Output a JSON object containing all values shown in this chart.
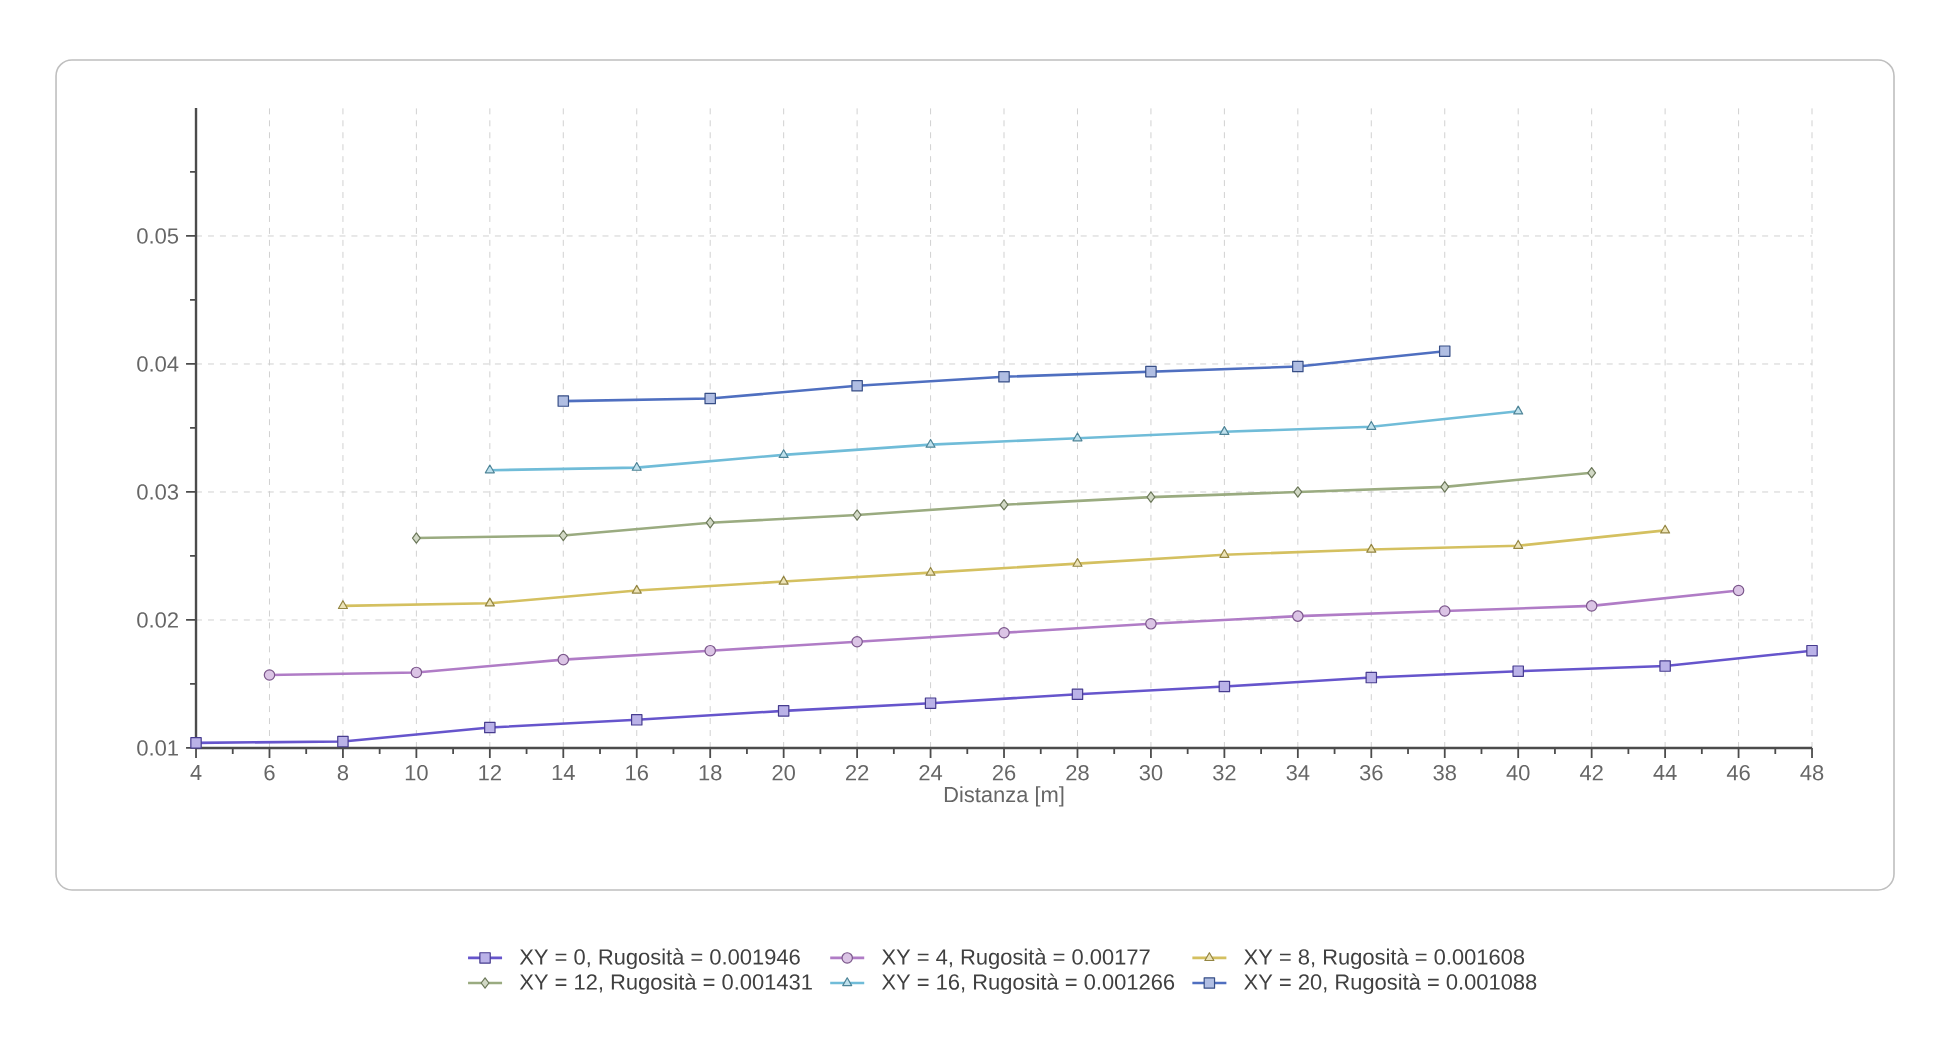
{
  "chart_data": {
    "type": "line",
    "xlabel": "Distanza [m]",
    "grid": true,
    "legend": "bottom",
    "xlim": [
      4,
      48
    ],
    "ylim": [
      0.01,
      0.06
    ],
    "xticks": [
      4,
      {
        "value": 5,
        "label": null
      },
      6,
      {
        "value": 7,
        "label": null
      },
      8,
      {
        "value": 9,
        "label": null
      },
      10,
      {
        "value": 11,
        "label": null
      },
      12,
      {
        "value": 13,
        "label": null
      },
      14,
      {
        "value": 15,
        "label": null
      },
      16,
      {
        "value": 17,
        "label": null
      },
      18,
      {
        "value": 19,
        "label": null
      },
      20,
      {
        "value": 21,
        "label": null
      },
      22,
      {
        "value": 23,
        "label": null
      },
      24,
      {
        "value": 25,
        "label": null
      },
      26,
      {
        "value": 27,
        "label": null
      },
      28,
      {
        "value": 29,
        "label": null
      },
      30,
      {
        "value": 31,
        "label": null
      },
      32,
      {
        "value": 33,
        "label": null
      },
      34,
      {
        "value": 35,
        "label": null
      },
      36,
      {
        "value": 37,
        "label": null
      },
      38,
      {
        "value": 39,
        "label": null
      },
      40,
      {
        "value": 41,
        "label": null
      },
      42,
      {
        "value": 43,
        "label": null
      },
      44,
      {
        "value": 45,
        "label": null
      },
      46,
      {
        "value": 47,
        "label": null
      },
      48
    ],
    "yticks": [
      0.01,
      {
        "value": 0.015,
        "label": null
      },
      0.02,
      {
        "value": 0.025,
        "label": null
      },
      0.03,
      {
        "value": 0.035,
        "label": null
      },
      0.04,
      {
        "value": 0.045,
        "label": null
      },
      0.05,
      {
        "value": 0.055,
        "label": null
      }
    ],
    "series": [
      {
        "name": "XY = 0, Rugosità = 0.001946",
        "color": "#6655cc",
        "marker": "square",
        "x": [
          4,
          8,
          12,
          16,
          20,
          24,
          28,
          32,
          36,
          40,
          44,
          48
        ],
        "values": [
          0.0104,
          0.0105,
          0.0116,
          0.0122,
          0.0129,
          0.0135,
          0.0142,
          0.0148,
          0.0155,
          0.016,
          0.0164,
          0.0176
        ]
      },
      {
        "name": "XY = 4, Rugosità = 0.00177",
        "color": "#b07cc6",
        "marker": "circle",
        "x": [
          6,
          10,
          14,
          18,
          22,
          26,
          30,
          34,
          38,
          42,
          46
        ],
        "values": [
          0.0157,
          0.0159,
          0.0169,
          0.0176,
          0.0183,
          0.019,
          0.0197,
          0.0203,
          0.0207,
          0.0211,
          0.0223
        ]
      },
      {
        "name": "XY = 8, Rugosità = 0.001608",
        "color": "#d4c060",
        "marker": "triangle",
        "x": [
          8,
          12,
          16,
          20,
          24,
          28,
          32,
          36,
          40,
          44
        ],
        "values": [
          0.0211,
          0.0213,
          0.0223,
          0.023,
          0.0237,
          0.0244,
          0.0251,
          0.0255,
          0.0258,
          0.027
        ]
      },
      {
        "name": "XY = 12, Rugosità = 0.001431",
        "color": "#9aab80",
        "marker": "diamond",
        "x": [
          10,
          14,
          18,
          22,
          26,
          30,
          34,
          38,
          42
        ],
        "values": [
          0.0264,
          0.0266,
          0.0276,
          0.0282,
          0.029,
          0.0296,
          0.03,
          0.0304,
          0.0315
        ]
      },
      {
        "name": "XY = 16, Rugosità = 0.001266",
        "color": "#70bcd8",
        "marker": "triangle",
        "x": [
          12,
          16,
          20,
          24,
          28,
          32,
          36,
          40
        ],
        "values": [
          0.0317,
          0.0319,
          0.0329,
          0.0337,
          0.0342,
          0.0347,
          0.0351,
          0.0363
        ]
      },
      {
        "name": "XY = 20, Rugosità = 0.001088",
        "color": "#4f6fc0",
        "marker": "square",
        "x": [
          14,
          18,
          22,
          26,
          30,
          34,
          38
        ],
        "values": [
          0.0371,
          0.0373,
          0.0383,
          0.039,
          0.0394,
          0.0398,
          0.041
        ]
      }
    ]
  }
}
